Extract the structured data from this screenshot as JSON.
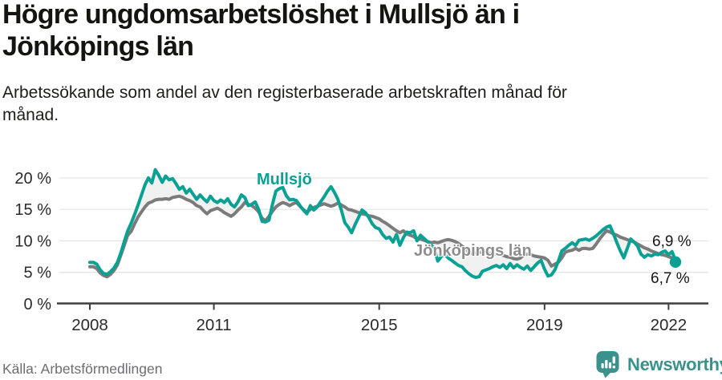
{
  "header": {
    "title_line1": "Högre ungdomsarbetslöshet i Mullsjö än i",
    "title_line2": "Jönköpings län",
    "subtitle_line1": "Arbetssökande som andel av den registerbaserade arbetskraften månad för",
    "subtitle_line2": "månad."
  },
  "chart_data": {
    "type": "line",
    "title": "Högre ungdomsarbetslöshet i Mullsjö än i Jönköpings län",
    "subtitle": "Arbetssökande som andel av den registerbaserade arbetskraften månad för månad.",
    "frequency": "monthly",
    "x_start": "2008-01",
    "x_end": "2022-03",
    "x_tick_years": [
      2008,
      2011,
      2015,
      2019,
      2022
    ],
    "x_tick_labels": [
      "2008",
      "2011",
      "2015",
      "2019",
      "2022"
    ],
    "y_ticks": [
      0,
      5,
      10,
      15,
      20
    ],
    "y_tick_labels": [
      "0 %",
      "5 %",
      "10 %",
      "15 %",
      "20 %"
    ],
    "ylim": [
      0,
      22.5
    ],
    "grid": true,
    "legend_position": "inline-labels",
    "band_fill": "#efefef",
    "series": [
      {
        "name": "Mullsjö",
        "color": "#09a193",
        "end_label": "6,9 %",
        "end_value": 6.9,
        "values": [
          6.6,
          6.6,
          6.3,
          5.4,
          4.8,
          4.7,
          5.1,
          5.7,
          6.6,
          8.1,
          9.9,
          11.6,
          12.8,
          14.2,
          15.7,
          17.3,
          18.9,
          20.0,
          19.2,
          21.3,
          20.4,
          19.3,
          20.3,
          19.7,
          19.9,
          19.1,
          18.2,
          18.6,
          17.6,
          18.2,
          17.4,
          16.6,
          17.3,
          16.7,
          16.2,
          17.1,
          16.4,
          16.1,
          16.5,
          16.1,
          16.7,
          15.8,
          15.4,
          16.2,
          17.3,
          16.9,
          15.6,
          15.8,
          16.2,
          15.0,
          13.1,
          13.0,
          13.3,
          15.8,
          17.9,
          18.3,
          18.5,
          17.2,
          16.5,
          16.6,
          16.4,
          15.6,
          14.9,
          14.3,
          15.6,
          14.9,
          15.4,
          16.2,
          17.0,
          17.9,
          18.6,
          17.7,
          16.6,
          14.9,
          12.9,
          12.2,
          11.3,
          12.6,
          13.7,
          14.9,
          14.5,
          13.7,
          12.7,
          12.1,
          11.9,
          11.0,
          10.4,
          10.6,
          9.8,
          11.0,
          9.3,
          10.5,
          11.4,
          11.3,
          11.6,
          10.0,
          10.9,
          10.4,
          9.9,
          9.4,
          8.8,
          6.8,
          7.5,
          7.9,
          7.3,
          6.9,
          6.5,
          6.1,
          5.9,
          5.3,
          4.8,
          4.4,
          4.2,
          4.3,
          5.2,
          5.4,
          5.6,
          5.9,
          6.1,
          5.8,
          6.2,
          5.6,
          6.4,
          5.7,
          6.2,
          5.8,
          5.5,
          6.0,
          5.3,
          5.9,
          6.5,
          6.9,
          5.5,
          4.4,
          4.6,
          5.4,
          6.8,
          8.4,
          8.8,
          9.3,
          9.7,
          9.3,
          10.1,
          10.2,
          10.3,
          10.1,
          10.4,
          10.8,
          11.3,
          11.8,
          12.2,
          12.4,
          11.1,
          9.7,
          8.4,
          7.3,
          8.8,
          10.3,
          9.8,
          9.2,
          7.9,
          7.4,
          7.8,
          7.6,
          7.9,
          7.8,
          8.2,
          8.4,
          7.8,
          8.3,
          6.9
        ]
      },
      {
        "name": "Jönköpings län",
        "color": "#7b7b7b",
        "end_label": "6,7 %",
        "end_value": 6.7,
        "values": [
          5.9,
          5.9,
          5.6,
          4.9,
          4.5,
          4.3,
          4.7,
          5.3,
          6.2,
          7.7,
          9.3,
          10.9,
          11.5,
          12.7,
          13.8,
          14.6,
          15.4,
          16.0,
          16.2,
          16.5,
          16.6,
          16.6,
          16.7,
          16.6,
          16.9,
          17.0,
          17.1,
          16.9,
          16.6,
          16.4,
          16.1,
          15.6,
          15.4,
          14.8,
          14.3,
          14.8,
          15.0,
          15.2,
          14.9,
          14.5,
          14.2,
          13.9,
          14.3,
          14.9,
          15.4,
          16.1,
          15.8,
          15.6,
          15.2,
          14.6,
          13.6,
          13.2,
          13.9,
          14.7,
          15.4,
          15.8,
          16.1,
          15.9,
          15.6,
          15.9,
          16.1,
          15.5,
          15.0,
          14.5,
          15.0,
          15.3,
          15.5,
          15.7,
          15.9,
          15.7,
          15.5,
          15.7,
          16.0,
          15.7,
          15.4,
          15.0,
          14.9,
          14.7,
          14.5,
          14.3,
          14.2,
          14.0,
          13.9,
          13.7,
          13.5,
          13.1,
          12.8,
          12.4,
          12.0,
          11.6,
          11.3,
          11.6,
          11.1,
          10.9,
          10.7,
          10.3,
          10.3,
          10.1,
          9.9,
          9.7,
          9.8,
          9.7,
          9.9,
          10.1,
          10.2,
          10.1,
          9.9,
          9.6,
          9.2,
          8.8,
          8.2,
          8.0,
          8.1,
          8.2,
          8.2,
          8.1,
          8.0,
          7.9,
          7.9,
          7.8,
          7.7,
          7.5,
          7.4,
          7.2,
          7.1,
          7.3,
          7.8,
          7.9,
          7.8,
          7.6,
          7.5,
          7.4,
          7.3,
          6.9,
          6.0,
          6.3,
          6.6,
          7.3,
          8.2,
          8.4,
          8.5,
          8.8,
          8.5,
          8.8,
          8.8,
          8.7,
          8.8,
          9.5,
          10.3,
          11.0,
          11.6,
          11.4,
          11.1,
          10.9,
          10.6,
          10.4,
          10.2,
          10.0,
          9.8,
          9.5,
          9.2,
          8.9,
          8.7,
          8.4,
          8.2,
          8.0,
          7.8,
          7.7,
          7.5,
          7.3,
          6.7
        ]
      }
    ]
  },
  "footer": {
    "source": "Källa: Arbetsförmedlingen",
    "brand": "Newsworthy"
  },
  "colors": {
    "accent_teal": "#09a193",
    "line_gray": "#7b7b7b",
    "label_gray": "#8d8d8d",
    "grid": "#e3e3e3",
    "axis": "#3f3f3f",
    "band_fill": "#efefef",
    "text_dark": "#141411",
    "source_gray": "#6c6c74",
    "brand_teal": "#3b928c"
  }
}
